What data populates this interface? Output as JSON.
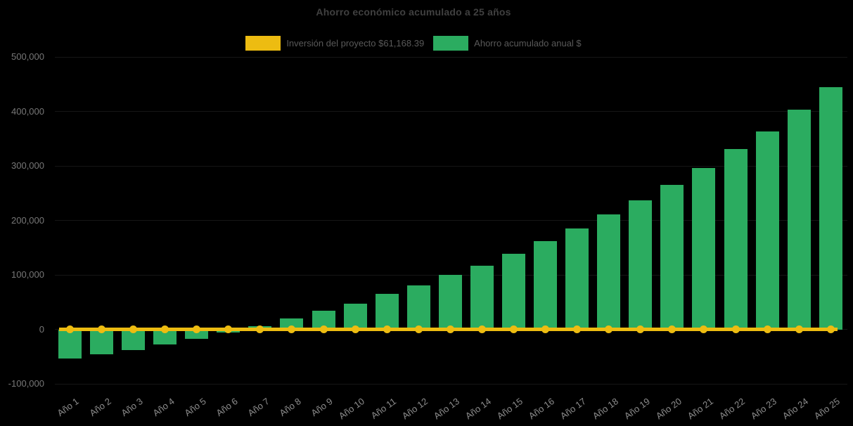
{
  "chart_data": {
    "type": "bar",
    "title": "Ahorro económico acumulado a 25 años",
    "background": "#000000",
    "categories": [
      "Año 1",
      "Año 2",
      "Año 3",
      "Año 4",
      "Año 5",
      "Año 6",
      "Año 7",
      "Año 8",
      "Año 9",
      "Año 10",
      "Año 11",
      "Año 12",
      "Año 13",
      "Año 14",
      "Año 15",
      "Año 16",
      "Año 17",
      "Año 18",
      "Año 19",
      "Año 20",
      "Año 21",
      "Año 22",
      "Año 23",
      "Año 24",
      "Año 25"
    ],
    "series": [
      {
        "name": "Inversión del proyecto $61,168.39",
        "type": "line",
        "color": "#EDBC11",
        "marker": "circle",
        "investment_value_label": "$61,168.39",
        "plotted_y_value": 0
      },
      {
        "name": "Ahorro acumulado anual $",
        "type": "bar",
        "color": "#2BAC60",
        "values": [
          -53000,
          -45500,
          -37500,
          -27500,
          -17000,
          -5000,
          6500,
          20000,
          34000,
          48000,
          65000,
          81000,
          100000,
          117500,
          139000,
          162500,
          186000,
          212000,
          237000,
          266000,
          297000,
          332000,
          364000,
          404000,
          445000
        ]
      }
    ],
    "ylim": [
      -100000,
      500000
    ],
    "yticks": {
      "values": [
        500000,
        400000,
        300000,
        200000,
        100000,
        0,
        -100000
      ],
      "labels": [
        "500,000",
        "400,000",
        "300,000",
        "200,000",
        "100,000",
        "0",
        "-100,000"
      ]
    },
    "grid": "horizontal, very faint",
    "legend_position": "top-center",
    "text_colors": {
      "title": "#404040",
      "legend": "#595959",
      "y_ticks": "#777777",
      "x_ticks": "#8C8C8C"
    }
  }
}
